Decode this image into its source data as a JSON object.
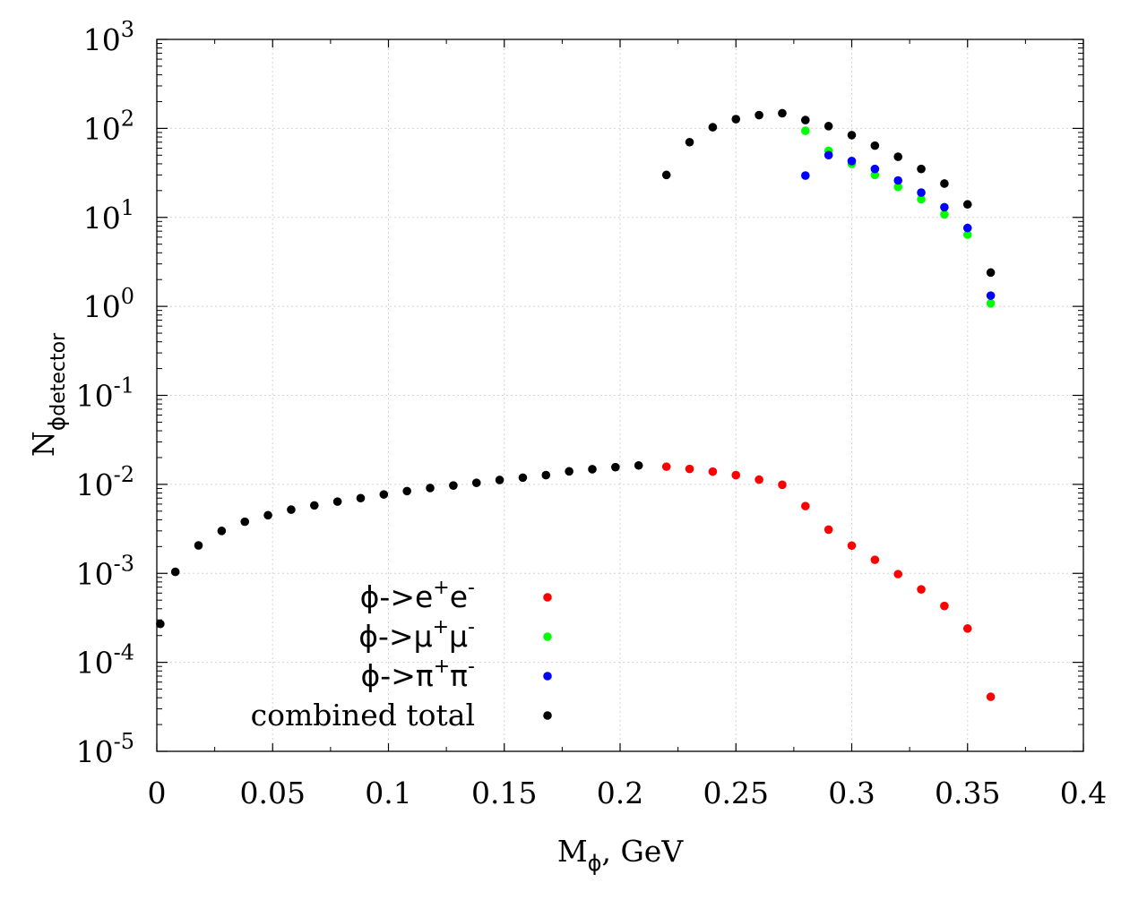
{
  "chart_data": {
    "type": "scatter",
    "title": "",
    "xlabel": "M",
    "xlabel_sub": "ϕ",
    "xlabel_suffix": ", GeV",
    "ylabel": "N",
    "ylabel_sub1": "ϕ",
    "ylabel_sub2": "detector",
    "xlim": [
      0,
      0.4
    ],
    "ylim": [
      1e-05,
      1000
    ],
    "yscale": "log",
    "grid": true,
    "legend_position": "bottom-left",
    "x_ticks": [
      {
        "value": 0,
        "label": "0"
      },
      {
        "value": 0.05,
        "label": "0.05"
      },
      {
        "value": 0.1,
        "label": "0.1"
      },
      {
        "value": 0.15,
        "label": "0.15"
      },
      {
        "value": 0.2,
        "label": "0.2"
      },
      {
        "value": 0.25,
        "label": "0.25"
      },
      {
        "value": 0.3,
        "label": "0.3"
      },
      {
        "value": 0.35,
        "label": "0.35"
      },
      {
        "value": 0.4,
        "label": "0.4"
      }
    ],
    "y_ticks": [
      {
        "exp": -5,
        "base": "10",
        "sup": "-5"
      },
      {
        "exp": -4,
        "base": "10",
        "sup": "-4"
      },
      {
        "exp": -3,
        "base": "10",
        "sup": "-3"
      },
      {
        "exp": -2,
        "base": "10",
        "sup": "-2"
      },
      {
        "exp": -1,
        "base": "10",
        "sup": "-1"
      },
      {
        "exp": 0,
        "base": "10",
        "sup": "0"
      },
      {
        "exp": 1,
        "base": "10",
        "sup": "1"
      },
      {
        "exp": 2,
        "base": "10",
        "sup": "2"
      },
      {
        "exp": 3,
        "base": "10",
        "sup": "3"
      }
    ],
    "series": [
      {
        "name": "ee",
        "label_main": "ϕ->e",
        "label_parts": [
          {
            "t": "ϕ->e",
            "s": ""
          },
          {
            "t": "+",
            "s": "sup"
          },
          {
            "t": "e",
            "s": ""
          },
          {
            "t": "-",
            "s": "sup"
          }
        ],
        "color": "#ff0000",
        "points": [
          [
            0.22,
            0.0158
          ],
          [
            0.23,
            0.0149
          ],
          [
            0.24,
            0.0139
          ],
          [
            0.25,
            0.0127
          ],
          [
            0.26,
            0.0113
          ],
          [
            0.27,
            0.0099
          ],
          [
            0.28,
            0.0057
          ],
          [
            0.29,
            0.0031
          ],
          [
            0.3,
            0.00205
          ],
          [
            0.31,
            0.00142
          ],
          [
            0.32,
            0.00098
          ],
          [
            0.33,
            0.00066
          ],
          [
            0.34,
            0.00043
          ],
          [
            0.35,
            0.00024
          ],
          [
            0.36,
            4.1e-05
          ]
        ]
      },
      {
        "name": "mumu",
        "label_parts": [
          {
            "t": "ϕ->μ",
            "s": ""
          },
          {
            "t": "+",
            "s": "sup"
          },
          {
            "t": "μ",
            "s": ""
          },
          {
            "t": "-",
            "s": "sup"
          }
        ],
        "color": "#00ff00",
        "points": [
          [
            0.28,
            94
          ],
          [
            0.29,
            56
          ],
          [
            0.3,
            40
          ],
          [
            0.31,
            30
          ],
          [
            0.32,
            22
          ],
          [
            0.33,
            16
          ],
          [
            0.34,
            10.8
          ],
          [
            0.35,
            6.4
          ],
          [
            0.36,
            1.08
          ]
        ]
      },
      {
        "name": "pipi",
        "label_parts": [
          {
            "t": "ϕ->π",
            "s": ""
          },
          {
            "t": "+",
            "s": "sup"
          },
          {
            "t": "π",
            "s": ""
          },
          {
            "t": "-",
            "s": "sup"
          }
        ],
        "color": "#0000ff",
        "points": [
          [
            0.28,
            29.5
          ],
          [
            0.29,
            50
          ],
          [
            0.3,
            43
          ],
          [
            0.31,
            35
          ],
          [
            0.32,
            26
          ],
          [
            0.33,
            19
          ],
          [
            0.34,
            13
          ],
          [
            0.35,
            7.6
          ],
          [
            0.36,
            1.32
          ]
        ]
      },
      {
        "name": "total",
        "label_parts": [
          {
            "t": "combined total",
            "s": ""
          }
        ],
        "color": "#000000",
        "points": [
          [
            0.0015,
            0.00027
          ],
          [
            0.008,
            0.00104
          ],
          [
            0.018,
            0.00206
          ],
          [
            0.028,
            0.003
          ],
          [
            0.038,
            0.0038
          ],
          [
            0.048,
            0.0045
          ],
          [
            0.058,
            0.0052
          ],
          [
            0.068,
            0.0058
          ],
          [
            0.078,
            0.0064
          ],
          [
            0.088,
            0.007
          ],
          [
            0.098,
            0.0077
          ],
          [
            0.108,
            0.0084
          ],
          [
            0.118,
            0.0091
          ],
          [
            0.128,
            0.0097
          ],
          [
            0.138,
            0.0104
          ],
          [
            0.148,
            0.0112
          ],
          [
            0.158,
            0.0119
          ],
          [
            0.168,
            0.0127
          ],
          [
            0.178,
            0.014
          ],
          [
            0.188,
            0.0148
          ],
          [
            0.198,
            0.0156
          ],
          [
            0.208,
            0.0163
          ],
          [
            0.22,
            30
          ],
          [
            0.23,
            70
          ],
          [
            0.24,
            103
          ],
          [
            0.25,
            127
          ],
          [
            0.26,
            141
          ],
          [
            0.27,
            148
          ],
          [
            0.28,
            124
          ],
          [
            0.29,
            106
          ],
          [
            0.3,
            84
          ],
          [
            0.31,
            64
          ],
          [
            0.32,
            48
          ],
          [
            0.33,
            35
          ],
          [
            0.34,
            24
          ],
          [
            0.35,
            14
          ],
          [
            0.36,
            2.4
          ]
        ]
      }
    ]
  }
}
